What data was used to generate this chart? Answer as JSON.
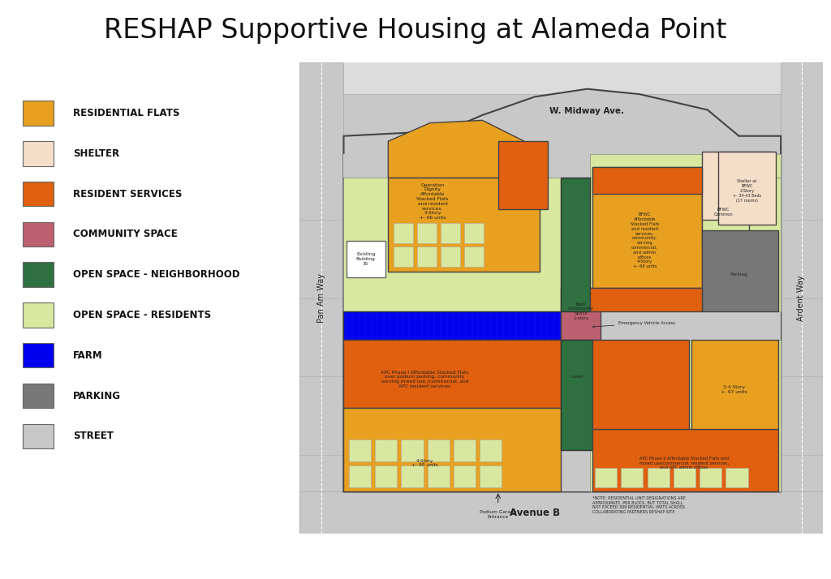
{
  "title": "RESHAP Supportive Housing at Alameda Point",
  "title_fontsize": 24,
  "background_color": "#ffffff",
  "colors": {
    "residential_flats": "#E8A020",
    "shelter": "#F5DEC8",
    "resident_services": "#E06010",
    "community_space": "#BC6070",
    "open_space_neighborhood": "#2E7040",
    "open_space_residents": "#D8E8A0",
    "farm": "#0000EE",
    "parking": "#787878",
    "street": "#C8C8C8",
    "white": "#FFFFFF",
    "light_street": "#DCDCDC",
    "dark_border": "#444444"
  },
  "legend_items": [
    {
      "label": "RESIDENTIAL FLATS",
      "color": "#E8A020"
    },
    {
      "label": "SHELTER",
      "color": "#F5DEC8"
    },
    {
      "label": "RESIDENT SERVICES",
      "color": "#E06010"
    },
    {
      "label": "COMMUNITY SPACE",
      "color": "#BC6070"
    },
    {
      "label": "OPEN SPACE - NEIGHBORHOOD",
      "color": "#2E7040"
    },
    {
      "label": "OPEN SPACE - RESIDENTS",
      "color": "#D8E8A0"
    },
    {
      "label": "FARM",
      "color": "#0000EE"
    },
    {
      "label": "PARKING",
      "color": "#787878"
    },
    {
      "label": "STREET",
      "color": "#C8C8C8"
    }
  ],
  "note_text": "*NOTE: RESIDENTIAL UNIT DESIGNATIONS ARE\nAPPROXIMATE, PER BLOCK, BUT TOTAL SHALL\nNOT EXCEED 309 RESIDENTIAL UNITS ACROSS\nCOLLABORATING PARTNERS RESHAP SITE"
}
